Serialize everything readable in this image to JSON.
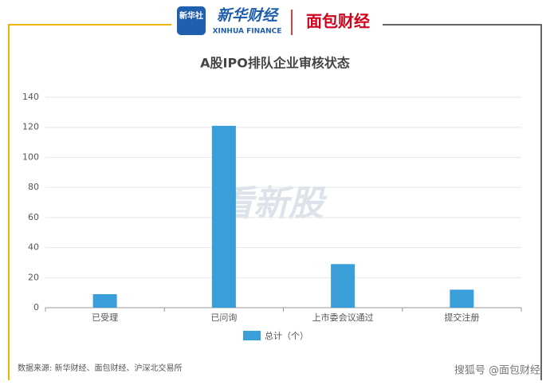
{
  "header": {
    "badge": "新华社",
    "brand": "新华财经",
    "brand_en": "XINHUA FINANCE",
    "partner": "面包财经"
  },
  "chart_data": {
    "type": "bar",
    "title": "A股IPO排队企业审核状态",
    "categories": [
      "已受理",
      "已问询",
      "上市委会议通过",
      "提交注册"
    ],
    "series": [
      {
        "name": "总计（个）",
        "color": "#3a9fd8",
        "values": [
          9,
          121,
          29,
          12
        ]
      }
    ],
    "ylim": [
      0,
      140
    ],
    "yticks": [
      0,
      20,
      40,
      60,
      80,
      100,
      120,
      140
    ],
    "grid": true,
    "watermark": "看新股",
    "source": "数据来源: 新华财经、面包财经、沪深北交易所"
  },
  "footer": "搜狐号 @面包财经"
}
